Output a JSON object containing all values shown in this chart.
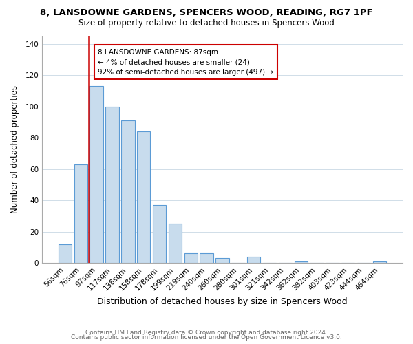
{
  "title_line1": "8, LANSDOWNE GARDENS, SPENCERS WOOD, READING, RG7 1PF",
  "title_line2": "Size of property relative to detached houses in Spencers Wood",
  "xlabel": "Distribution of detached houses by size in Spencers Wood",
  "ylabel": "Number of detached properties",
  "bar_labels": [
    "56sqm",
    "76sqm",
    "97sqm",
    "117sqm",
    "138sqm",
    "158sqm",
    "178sqm",
    "199sqm",
    "219sqm",
    "240sqm",
    "260sqm",
    "280sqm",
    "301sqm",
    "321sqm",
    "342sqm",
    "362sqm",
    "382sqm",
    "403sqm",
    "423sqm",
    "444sqm",
    "464sqm"
  ],
  "bar_heights": [
    12,
    63,
    113,
    100,
    91,
    84,
    37,
    25,
    6,
    6,
    3,
    0,
    4,
    0,
    0,
    1,
    0,
    0,
    0,
    0,
    1
  ],
  "bar_fill_color": "#c8dced",
  "bar_edge_color": "#5b9bd5",
  "vline_color": "#cc0000",
  "vline_x_idx": 1.5,
  "annotation_text": "8 LANSDOWNE GARDENS: 87sqm\n← 4% of detached houses are smaller (24)\n92% of semi-detached houses are larger (497) →",
  "annotation_box_color": "#ffffff",
  "annotation_box_edge": "#cc0000",
  "ylim": [
    0,
    145
  ],
  "yticks": [
    0,
    20,
    40,
    60,
    80,
    100,
    120,
    140
  ],
  "footer_line1": "Contains HM Land Registry data © Crown copyright and database right 2024.",
  "footer_line2": "Contains public sector information licensed under the Open Government Licence v3.0.",
  "bg_color": "#ffffff",
  "grid_color": "#d0dde8",
  "title_fontsize": 9.5,
  "subtitle_fontsize": 8.5,
  "xlabel_fontsize": 9,
  "ylabel_fontsize": 8.5,
  "tick_fontsize": 7.5,
  "footer_fontsize": 6.5
}
